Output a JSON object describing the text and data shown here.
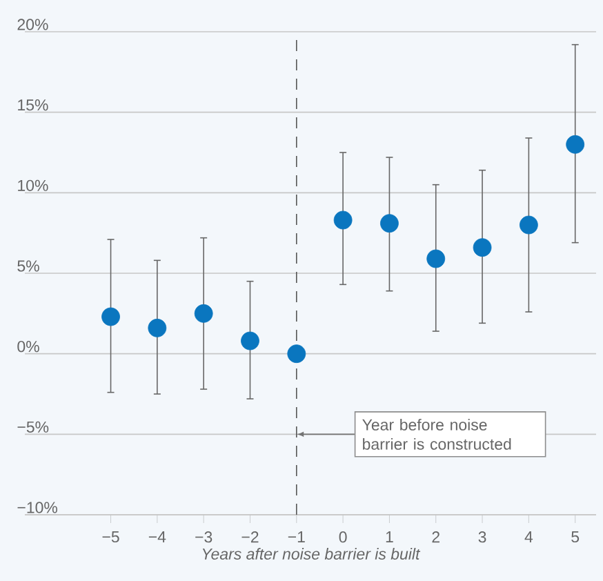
{
  "chart_data": {
    "type": "scatter",
    "xlabel": "Years after noise barrier is built",
    "x": [
      -5,
      -4,
      -3,
      -2,
      -1,
      0,
      1,
      2,
      3,
      4,
      5
    ],
    "values": [
      2.3,
      1.6,
      2.5,
      0.8,
      0,
      8.3,
      8.1,
      5.9,
      6.6,
      8.0,
      13.0
    ],
    "errors": [
      [
        -2.4,
        7.1
      ],
      [
        -2.5,
        5.8
      ],
      [
        -2.2,
        7.2
      ],
      [
        -2.8,
        4.5
      ],
      null,
      [
        4.3,
        12.5
      ],
      [
        3.9,
        12.2
      ],
      [
        1.4,
        10.5
      ],
      [
        1.9,
        11.4
      ],
      [
        2.6,
        13.4
      ],
      [
        6.9,
        19.2
      ]
    ],
    "color": "#0a76bf",
    "grid": "y",
    "xlim": [
      -6.85,
      5.45
    ],
    "xticks": [
      {
        "value": -5,
        "label": "−5"
      },
      {
        "value": -4,
        "label": "−4"
      },
      {
        "value": -3,
        "label": "−3"
      },
      {
        "value": -2,
        "label": "−2"
      },
      {
        "value": -1,
        "label": "−1"
      },
      {
        "value": 0,
        "label": "0"
      },
      {
        "value": 1,
        "label": "1"
      },
      {
        "value": 2,
        "label": "2"
      },
      {
        "value": 3,
        "label": "3"
      },
      {
        "value": 4,
        "label": "4"
      },
      {
        "value": 5,
        "label": "5"
      }
    ],
    "ylim": [
      -10,
      20
    ],
    "yticks": [
      {
        "value": -10,
        "label": "−10%"
      },
      {
        "value": -5,
        "label": "−5%"
      },
      {
        "value": 0,
        "label": "0%"
      },
      {
        "value": 5,
        "label": "5%"
      },
      {
        "value": 10,
        "label": "10%"
      },
      {
        "value": 15,
        "label": "15%"
      },
      {
        "value": 20,
        "label": "20%"
      }
    ],
    "ref_lines": [
      {
        "axis": "x",
        "value": -1,
        "line_style": "dashed",
        "color": "#555555"
      }
    ],
    "annotations": [
      {
        "text": "Year before noise barrier is constructed",
        "x": -1,
        "y": -5
      }
    ]
  }
}
